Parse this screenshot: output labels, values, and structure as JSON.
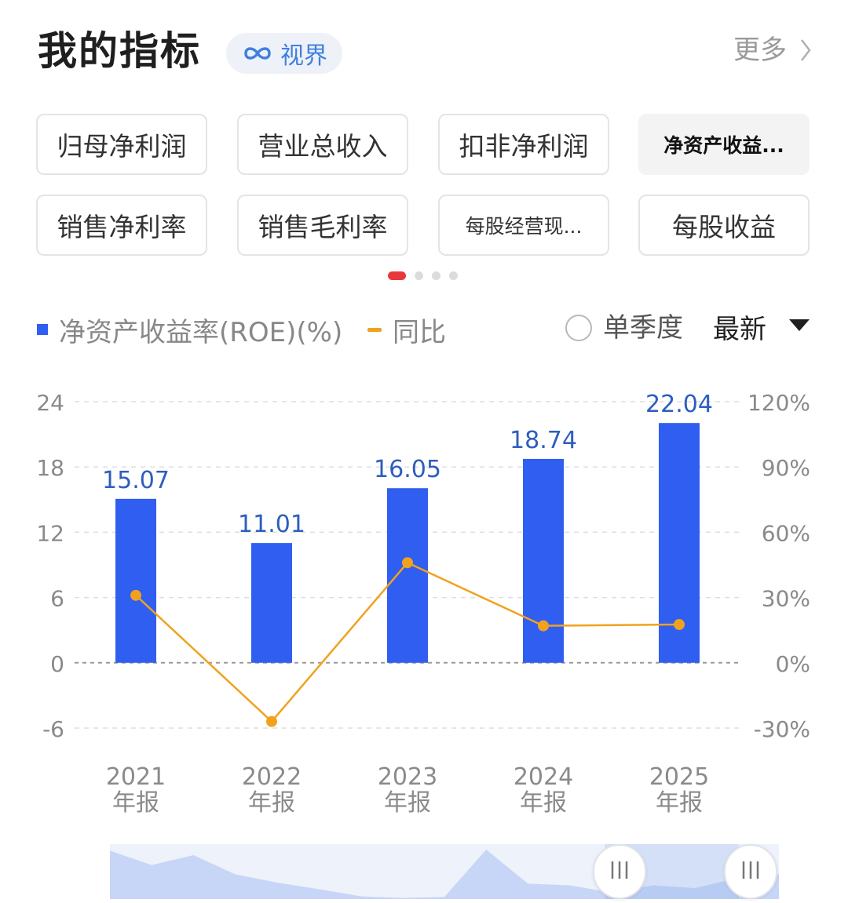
{
  "header": {
    "title": "我的指标",
    "badge_label": "视界",
    "more_label": "更多"
  },
  "tabs": [
    {
      "label": "归母净利润",
      "active": false
    },
    {
      "label": "营业总收入",
      "active": false
    },
    {
      "label": "扣非净利润",
      "active": false
    },
    {
      "label": "净资产收益...",
      "active": true
    },
    {
      "label": "销售净利率",
      "active": false
    },
    {
      "label": "销售毛利率",
      "active": false
    },
    {
      "label": "每股经营现...",
      "active": false
    },
    {
      "label": "每股收益",
      "active": false
    }
  ],
  "page_dots": {
    "count": 4,
    "active_index": 0
  },
  "legend": {
    "bar_label": "净资产收益率(ROE)(%)",
    "line_label": "同比",
    "single_quarter_label": "单季度",
    "sort_label": "最新"
  },
  "colors": {
    "bar": "#2f5ef0",
    "line": "#f0a21f",
    "value_label": "#2e5dc0",
    "active_dot": "#e8383d",
    "badge_text": "#3f7fe0"
  },
  "icons": {
    "badge_icon": "infinity-icon",
    "more_icon": "chevron-right-icon",
    "sort_icon": "caret-down-icon",
    "handle_icon": "grip-icon"
  },
  "chart_data": {
    "type": "bar",
    "categories": [
      "2021\n年报",
      "2022\n年报",
      "2023\n年报",
      "2024\n年报",
      "2025\n年报"
    ],
    "series": [
      {
        "name": "净资产收益率(ROE)(%)",
        "type": "bar",
        "axis": "left",
        "values": [
          15.07,
          11.01,
          16.05,
          18.74,
          22.04
        ],
        "labels": [
          "15.07",
          "11.01",
          "16.05",
          "18.74",
          "22.04"
        ]
      },
      {
        "name": "同比",
        "type": "line",
        "axis": "right",
        "values": [
          31,
          -27,
          46,
          17,
          17.6
        ]
      }
    ],
    "y_left": {
      "min": -6,
      "max": 24,
      "ticks": [
        24,
        18,
        12,
        6,
        0,
        -6
      ],
      "tick_labels": [
        "24",
        "18",
        "12",
        "6",
        "0",
        "-6"
      ]
    },
    "y_right": {
      "min": -30,
      "max": 120,
      "ticks": [
        120,
        90,
        60,
        30,
        0,
        -30
      ],
      "tick_labels": [
        "120%",
        "90%",
        "60%",
        "30%",
        "0%",
        "-30%"
      ]
    },
    "grid": true,
    "brush_range": [
      0.74,
      0.94
    ],
    "overview_values": [
      0.88,
      0.62,
      0.8,
      0.45,
      0.3,
      0.18,
      0.05,
      0.02,
      0.04,
      0.9,
      0.28,
      0.25,
      0.12,
      0.25,
      0.2,
      0.38,
      0.45
    ]
  }
}
